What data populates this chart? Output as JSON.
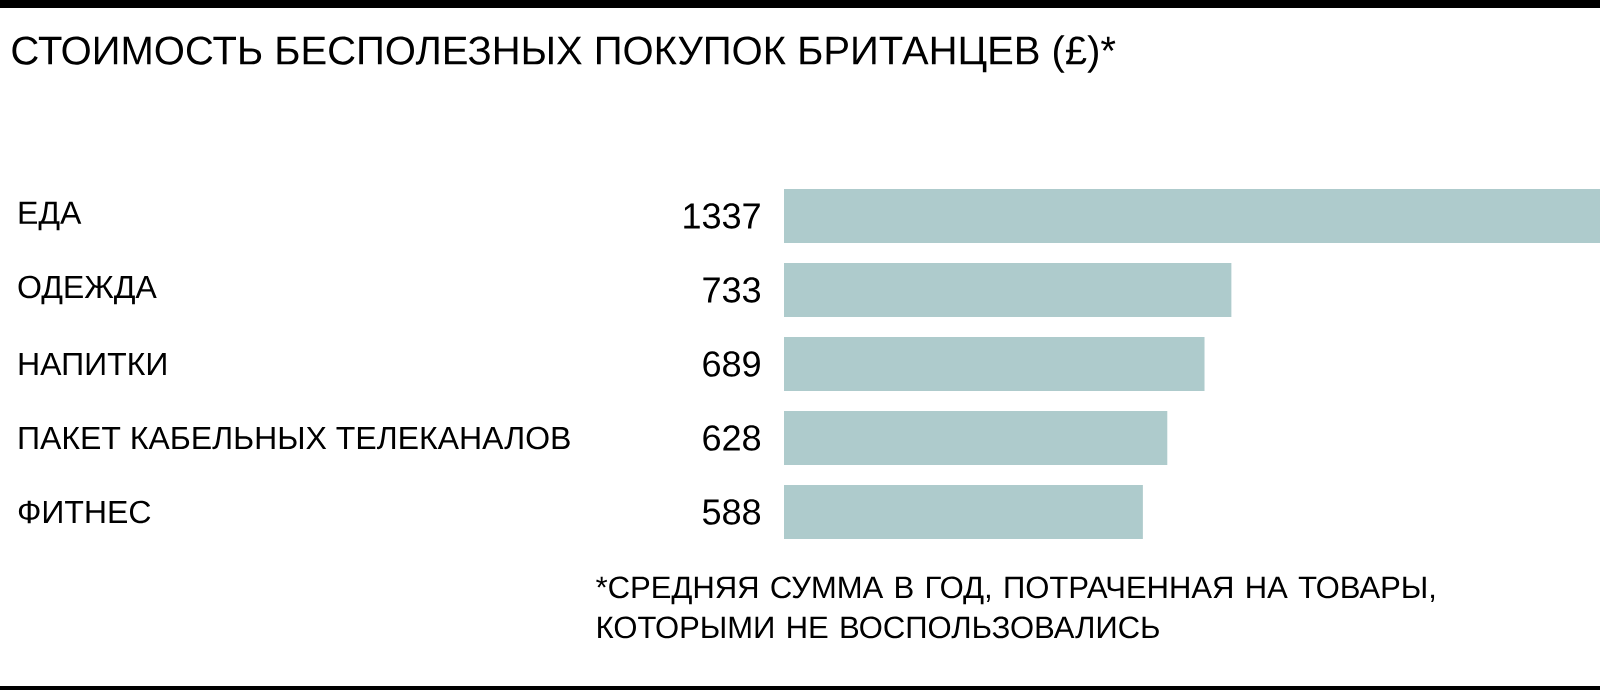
{
  "chart_data": {
    "type": "bar",
    "orientation": "horizontal",
    "title": "СТОИМОСТЬ БЕСПОЛЕЗНЫХ ПОКУПОК БРИТАНЦЕВ (£)*",
    "categories": [
      "ЕДА",
      "ОДЕЖДА",
      "НАПИТКИ",
      "ПАКЕТ КАБЕЛЬНЫХ ТЕЛЕКАНАЛОВ",
      "ФИТНЕС"
    ],
    "values": [
      1337,
      733,
      689,
      628,
      588
    ],
    "color": "#aecbcc",
    "data_labels": true,
    "annotations": [
      "*СРЕДНЯЯ СУММА В ГОД, ПОТРАЧЕННАЯ НА ТОВАРЫ, КОТОРЫМИ НЕ ВОСПОЛЬЗОВАЛИСЬ"
    ]
  }
}
